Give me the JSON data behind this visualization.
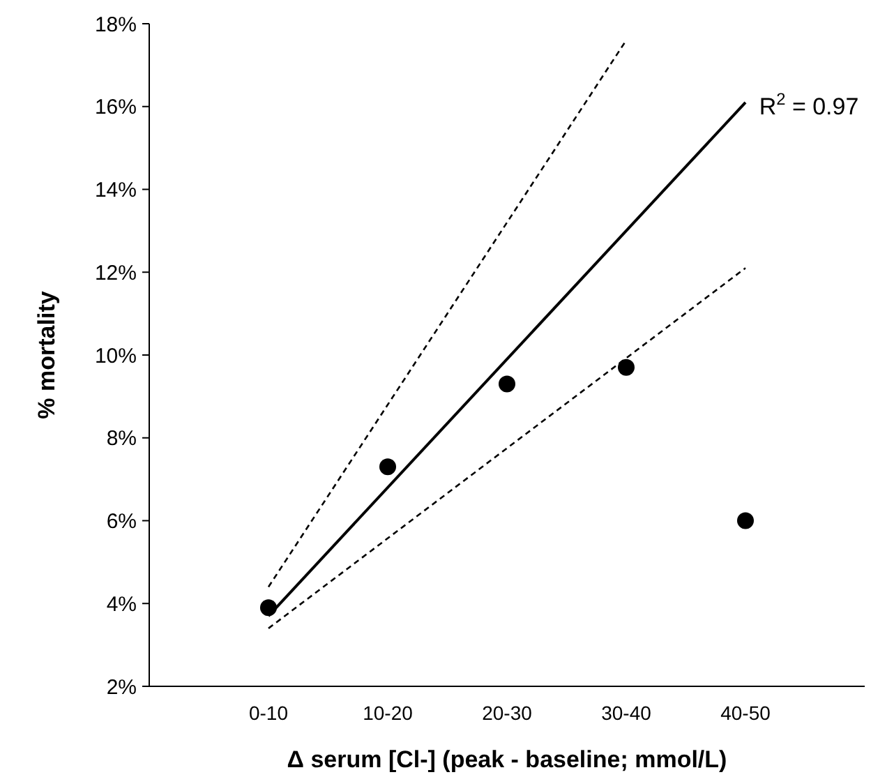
{
  "chart_data": {
    "type": "scatter",
    "xlabel": "Δ serum [Cl-] (peak - baseline; mmol/L)",
    "ylabel": "% mortality",
    "categories": [
      "0-10",
      "10-20",
      "20-30",
      "30-40",
      "40-50"
    ],
    "ylim": [
      2,
      18
    ],
    "yticks": [
      {
        "value": 2,
        "label": "2%"
      },
      {
        "value": 4,
        "label": "4%"
      },
      {
        "value": 6,
        "label": "6%"
      },
      {
        "value": 8,
        "label": "8%"
      },
      {
        "value": 10,
        "label": "10%"
      },
      {
        "value": 12,
        "label": "12%"
      },
      {
        "value": 14,
        "label": "14%"
      },
      {
        "value": 16,
        "label": "16%"
      },
      {
        "value": 18,
        "label": "18%"
      }
    ],
    "grid": false,
    "series": [
      {
        "color": "#000000",
        "marker": "circle",
        "values": [
          3.9,
          7.3,
          9.3,
          9.7,
          6.0
        ]
      },
      {
        "type": "line",
        "color": "#000000",
        "marker": "none",
        "line_style": "solid",
        "x": [
          "0-10",
          "40-50"
        ],
        "values": [
          3.7,
          16.1
        ]
      },
      {
        "type": "line",
        "color": "#000000",
        "marker": "none",
        "line_style": "dashed",
        "x": [
          "0-10",
          "30-40"
        ],
        "values": [
          4.4,
          17.6
        ]
      },
      {
        "type": "line",
        "color": "#000000",
        "marker": "none",
        "line_style": "dashed",
        "x": [
          "0-10",
          "40-50"
        ],
        "values": [
          3.4,
          12.1
        ]
      }
    ],
    "annotations": [
      "R$^{2}$ = 0.97"
    ]
  }
}
